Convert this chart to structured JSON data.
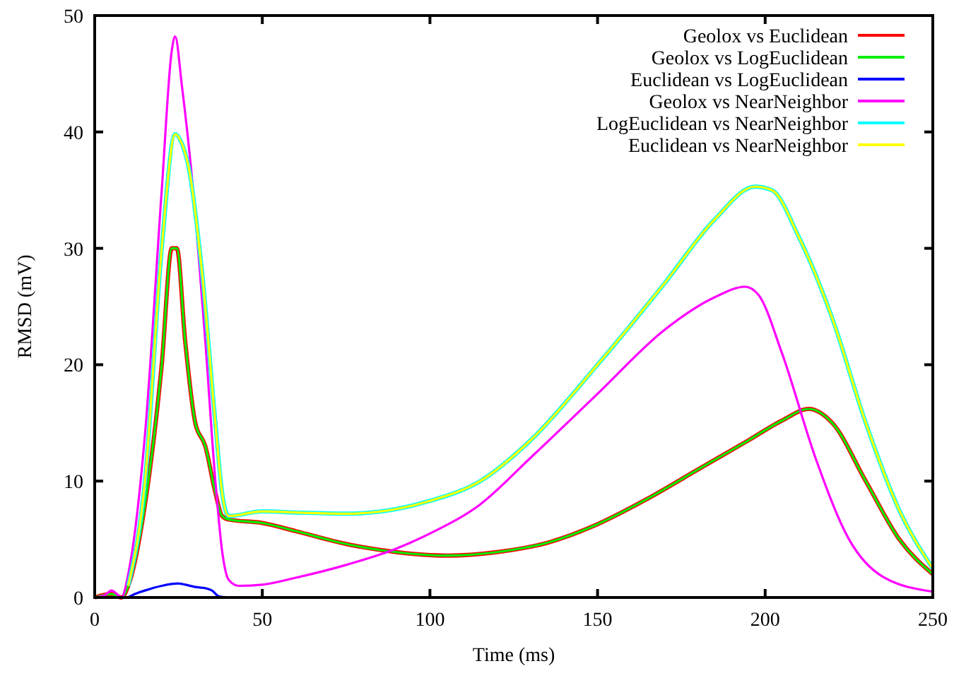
{
  "chart_data": {
    "type": "line",
    "xlabel": "Time (ms)",
    "ylabel": "RMSD (mV)",
    "xlim": [
      0,
      250
    ],
    "ylim": [
      0,
      50
    ],
    "xticks": [
      0,
      50,
      100,
      150,
      200,
      250
    ],
    "yticks": [
      0,
      10,
      20,
      30,
      40,
      50
    ],
    "grid": false,
    "legend": "top right",
    "marker": "none",
    "line_style": "solid",
    "x": [
      0,
      5,
      8,
      10,
      15,
      20,
      23,
      24.5,
      27,
      30,
      33,
      36,
      38,
      40,
      50,
      60,
      75,
      90,
      105,
      120,
      135,
      150,
      165,
      180,
      195,
      205,
      213,
      220,
      230,
      240,
      250
    ],
    "series": [
      {
        "name": "Geolox vs Euclidean",
        "color": "#ff0000",
        "values": [
          0,
          0.3,
          0,
          1,
          8,
          20,
          30,
          30,
          22,
          15,
          13,
          9,
          7,
          6.7,
          6.4,
          5.7,
          4.6,
          3.9,
          3.6,
          3.9,
          4.7,
          6.3,
          8.5,
          11,
          13.5,
          15.2,
          16.2,
          15,
          10,
          5,
          2
        ]
      },
      {
        "name": "Geolox vs LogEuclidean",
        "color": "#00ee00",
        "values": [
          0,
          0.3,
          0,
          1,
          8,
          20,
          30,
          30,
          22,
          15,
          13,
          9,
          7,
          6.7,
          6.4,
          5.7,
          4.6,
          3.9,
          3.6,
          3.9,
          4.7,
          6.3,
          8.5,
          11,
          13.5,
          15.2,
          16.2,
          15,
          10,
          5,
          2
        ]
      },
      {
        "name": "Euclidean vs LogEuclidean",
        "color": "#0000ff",
        "x": [
          10,
          12,
          15,
          20,
          25,
          27,
          30,
          33,
          35,
          37,
          40
        ],
        "values": [
          0,
          0.3,
          0.6,
          1,
          1.2,
          1.1,
          0.9,
          0.8,
          0.6,
          0.1,
          0
        ]
      },
      {
        "name": "Geolox vs NearNeighbor",
        "color": "#ff00ff",
        "x": [
          0,
          3,
          5,
          7,
          8,
          10,
          15,
          20,
          23,
          24,
          26,
          30,
          33,
          36,
          38,
          40,
          43,
          50,
          60,
          75,
          90,
          100,
          115,
          130,
          150,
          170,
          185,
          194,
          198,
          205,
          215,
          225,
          235,
          250
        ],
        "values": [
          0,
          0.2,
          0.6,
          0.2,
          0,
          2,
          14,
          35,
          47,
          48.2,
          44,
          33,
          22,
          10,
          4,
          1.5,
          1,
          1.1,
          1.7,
          2.8,
          4.2,
          5.5,
          8,
          12,
          17.5,
          23,
          25.8,
          26.7,
          26,
          21,
          12,
          5,
          1.8,
          0.5
        ]
      },
      {
        "name": "LogEuclidean vs NearNeighbor",
        "color": "#00ffff",
        "x": [
          10,
          15,
          20,
          24,
          26,
          28,
          32,
          36,
          38,
          40,
          50,
          60,
          75,
          90,
          100,
          115,
          130,
          150,
          170,
          185,
          197,
          202,
          210,
          220,
          230,
          240,
          250
        ],
        "values": [
          1,
          10,
          30,
          39.8,
          39,
          37,
          28,
          15,
          9,
          7,
          7.4,
          7.3,
          7.2,
          7.6,
          8.3,
          10,
          13.5,
          20,
          27,
          32.5,
          35.3,
          35,
          31,
          24,
          15,
          7.5,
          2.5
        ]
      },
      {
        "name": "Euclidean vs NearNeighbor",
        "color": "#ffff00",
        "x": [
          10,
          15,
          20,
          24,
          26,
          28,
          32,
          36,
          38,
          40,
          50,
          60,
          75,
          90,
          100,
          115,
          130,
          150,
          170,
          185,
          197,
          202,
          210,
          220,
          230,
          240,
          250
        ],
        "values": [
          1,
          10,
          30,
          39.8,
          39,
          37,
          28,
          15,
          9,
          7,
          7.4,
          7.3,
          7.2,
          7.6,
          8.3,
          10,
          13.5,
          20,
          27,
          32.5,
          35.3,
          35,
          31,
          24,
          15,
          7.5,
          2.5
        ]
      }
    ]
  }
}
